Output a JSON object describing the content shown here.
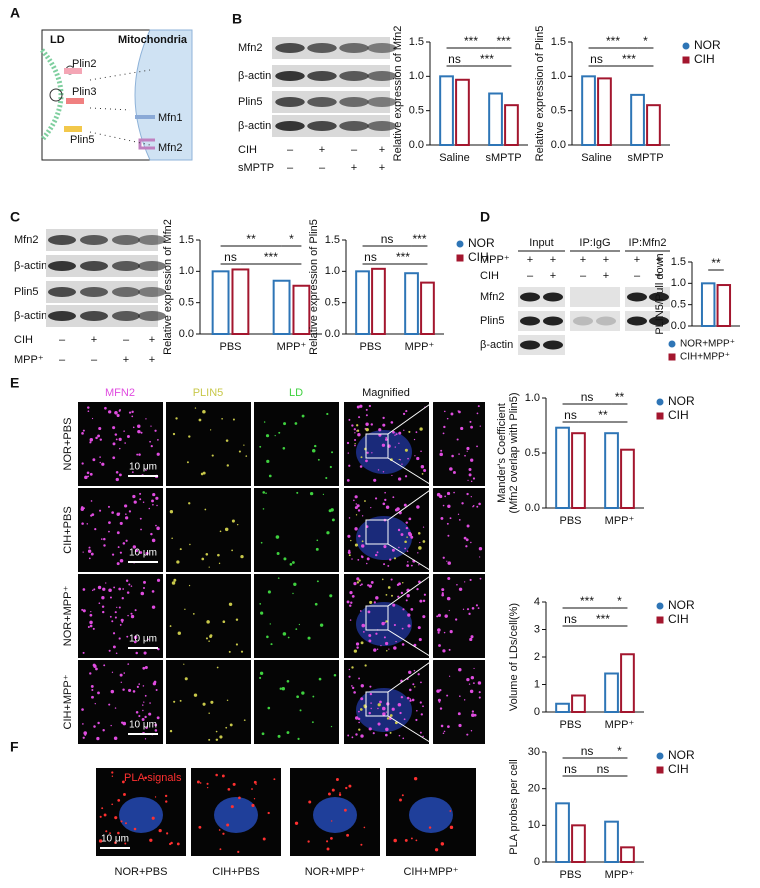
{
  "panel_labels": [
    "A",
    "B",
    "C",
    "D",
    "E",
    "F"
  ],
  "diagram": {
    "labels": [
      "LD",
      "Mitochondria",
      "Plin2",
      "Plin3",
      "Plin5",
      "Mfn1",
      "Mfn2"
    ]
  },
  "blot_b": {
    "rows": [
      "Mfn2",
      "β-actin",
      "Plin5",
      "β-actin"
    ],
    "treatments": [
      {
        "name": "CIH",
        "signs": [
          "–",
          "+",
          "–",
          "+"
        ]
      },
      {
        "name": "sMPTP",
        "signs": [
          "–",
          "–",
          "+",
          "+"
        ]
      }
    ]
  },
  "blot_c": {
    "rows": [
      "Mfn2",
      "β-actin",
      "Plin5",
      "β-actin"
    ],
    "treatments": [
      {
        "name": "CIH",
        "signs": [
          "–",
          "+",
          "–",
          "+"
        ]
      },
      {
        "name": "MPP⁺",
        "signs": [
          "–",
          "–",
          "+",
          "+"
        ]
      }
    ]
  },
  "blot_d": {
    "groups": [
      "Input",
      "IP:IgG",
      "IP:Mfn2"
    ],
    "rows": [
      "Mfn2",
      "Plin5",
      "β-actin"
    ],
    "treatments": [
      {
        "name": "MPP⁺",
        "signs": [
          "+",
          "+",
          "+",
          "+",
          "+",
          "+"
        ]
      },
      {
        "name": "CIH",
        "signs": [
          "–",
          "+",
          "–",
          "+",
          "–",
          "+"
        ]
      }
    ]
  },
  "imaging_e": {
    "columns": [
      "MFN2",
      "PLIN5",
      "LD",
      "Magnified"
    ],
    "rows": [
      "NOR+PBS",
      "CIH+PBS",
      "NOR+MPP⁺",
      "CIH+MPP⁺"
    ],
    "scale_bar": "10 μm"
  },
  "imaging_f": {
    "label": "PLA signals",
    "scale_bar": "10 μm",
    "captions": [
      "NOR+PBS",
      "CIH+PBS",
      "NOR+MPP⁺",
      "CIH+MPP⁺"
    ]
  },
  "chart_data": [
    {
      "type": "bar",
      "ylabel": [
        "Relative expression of Mfn2"
      ],
      "categories": [
        "Saline",
        "sMPTP"
      ],
      "series": [
        {
          "name": "NOR",
          "color": "#2e75b6",
          "values": [
            1.0,
            0.75
          ]
        },
        {
          "name": "CIH",
          "color": "#a3162e",
          "values": [
            0.95,
            0.58
          ]
        }
      ],
      "ylim": [
        0,
        1.5
      ],
      "yticks": [
        {
          "value": 0,
          "label": "0.0"
        },
        {
          "value": 0.5,
          "label": "0.5"
        },
        {
          "value": 1,
          "label": "1.0"
        },
        {
          "value": 1.5,
          "label": "1.5"
        }
      ],
      "significance": [
        "***",
        "***",
        "ns",
        "***"
      ]
    },
    {
      "type": "bar",
      "ylabel": [
        "Relative expression of Plin5"
      ],
      "categories": [
        "Saline",
        "sMPTP"
      ],
      "series": [
        {
          "name": "NOR",
          "color": "#2e75b6",
          "values": [
            1.0,
            0.73
          ]
        },
        {
          "name": "CIH",
          "color": "#a3162e",
          "values": [
            0.97,
            0.58
          ]
        }
      ],
      "ylim": [
        0,
        1.5
      ],
      "yticks": [
        {
          "value": 0,
          "label": "0.0"
        },
        {
          "value": 0.5,
          "label": "0.5"
        },
        {
          "value": 1,
          "label": "1.0"
        },
        {
          "value": 1.5,
          "label": "1.5"
        }
      ],
      "significance": [
        "***",
        "*",
        "ns",
        "***"
      ],
      "legend": "right"
    },
    {
      "type": "bar",
      "ylabel": [
        "Relative expression of Mfn2"
      ],
      "categories": [
        "PBS",
        "MPP⁺"
      ],
      "series": [
        {
          "name": "NOR",
          "color": "#2e75b6",
          "values": [
            1.0,
            0.85
          ]
        },
        {
          "name": "CIH",
          "color": "#a3162e",
          "values": [
            1.03,
            0.77
          ]
        }
      ],
      "ylim": [
        0,
        1.5
      ],
      "yticks": [
        {
          "value": 0,
          "label": "0.0"
        },
        {
          "value": 0.5,
          "label": "0.5"
        },
        {
          "value": 1,
          "label": "1.0"
        },
        {
          "value": 1.5,
          "label": "1.5"
        }
      ],
      "significance": [
        "**",
        "*",
        "ns",
        "***"
      ]
    },
    {
      "type": "bar",
      "ylabel": [
        "Relative expression of Plin5"
      ],
      "categories": [
        "PBS",
        "MPP⁺"
      ],
      "series": [
        {
          "name": "NOR",
          "color": "#2e75b6",
          "values": [
            1.0,
            0.97
          ]
        },
        {
          "name": "CIH",
          "color": "#a3162e",
          "values": [
            1.04,
            0.82
          ]
        }
      ],
      "ylim": [
        0,
        1.5
      ],
      "yticks": [
        {
          "value": 0,
          "label": "0.0"
        },
        {
          "value": 0.5,
          "label": "0.5"
        },
        {
          "value": 1,
          "label": "1.0"
        },
        {
          "value": 1.5,
          "label": "1.5"
        }
      ],
      "significance": [
        "ns",
        "***",
        "ns",
        "***"
      ],
      "legend": "right"
    },
    {
      "type": "bar",
      "ylabel": [
        "PLIN5/Pull down"
      ],
      "categories": [
        null
      ],
      "series": [
        {
          "name": "NOR+MPP⁺",
          "color": "#2e75b6",
          "values": [
            1.0
          ]
        },
        {
          "name": "CIH+MPP⁺",
          "color": "#a3162e",
          "values": [
            0.96
          ]
        }
      ],
      "ylim": [
        0,
        1.5
      ],
      "yticks": [
        {
          "value": 0,
          "label": "0.0"
        },
        {
          "value": 0.5,
          "label": "0.5"
        },
        {
          "value": 1,
          "label": "1.0"
        },
        {
          "value": 1.5,
          "label": "1.5"
        }
      ],
      "significance": [
        "**"
      ],
      "legend": "below"
    },
    {
      "type": "bar",
      "ylabel": [
        "Mander's Coefficient",
        "(Mfn2 overlap with Plin5)"
      ],
      "categories": [
        "PBS",
        "MPP⁺"
      ],
      "series": [
        {
          "name": "NOR",
          "color": "#2e75b6",
          "values": [
            0.73,
            0.68
          ]
        },
        {
          "name": "CIH",
          "color": "#a3162e",
          "values": [
            0.68,
            0.53
          ]
        }
      ],
      "ylim": [
        0,
        1
      ],
      "yticks": [
        {
          "value": 0,
          "label": "0.0"
        },
        {
          "value": 0.5,
          "label": "0.5"
        },
        {
          "value": 1,
          "label": "1.0"
        }
      ],
      "significance": [
        "ns",
        "**",
        "ns",
        "**"
      ],
      "legend": "right"
    },
    {
      "type": "bar",
      "ylabel": [
        "Volume of LDs/cell(%)"
      ],
      "categories": [
        "PBS",
        "MPP⁺"
      ],
      "series": [
        {
          "name": "NOR",
          "color": "#2e75b6",
          "values": [
            0.3,
            1.4
          ]
        },
        {
          "name": "CIH",
          "color": "#a3162e",
          "values": [
            0.6,
            2.1
          ]
        }
      ],
      "ylim": [
        0,
        4
      ],
      "yticks": [
        0,
        1,
        2,
        3,
        4
      ],
      "significance": [
        "***",
        "*",
        "ns",
        "***"
      ],
      "legend": "right"
    },
    {
      "type": "bar",
      "ylabel": [
        "PLA probes per cell"
      ],
      "categories": [
        "PBS",
        "MPP⁺"
      ],
      "series": [
        {
          "name": "NOR",
          "color": "#2e75b6",
          "values": [
            16,
            11
          ]
        },
        {
          "name": "CIH",
          "color": "#a3162e",
          "values": [
            10,
            4
          ]
        }
      ],
      "ylim": [
        0,
        30
      ],
      "yticks": [
        0,
        10,
        20,
        30
      ],
      "significance": [
        "ns",
        "*",
        "ns",
        "ns"
      ],
      "legend": "right"
    }
  ]
}
